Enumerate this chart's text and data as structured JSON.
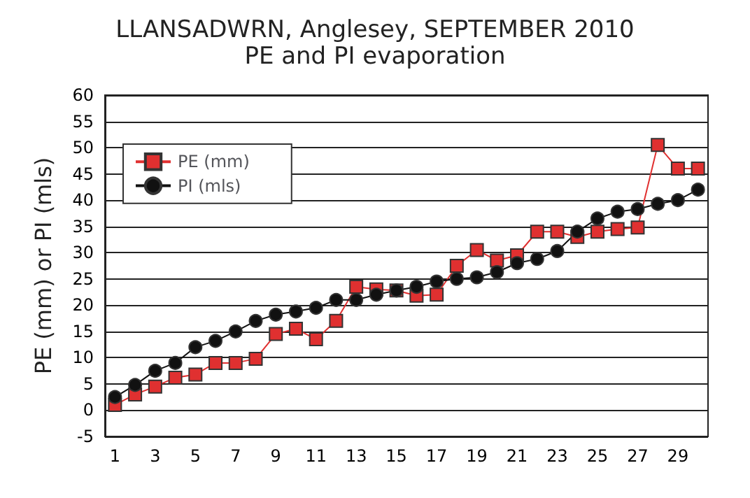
{
  "chart_data": {
    "type": "line",
    "title": "LLANSADWRN, Anglesey, SEPTEMBER 2010",
    "subtitle": "PE and PI evaporation",
    "ylabel": "PE (mm) or PI (mls)",
    "x": [
      1,
      2,
      3,
      4,
      5,
      6,
      7,
      8,
      9,
      10,
      11,
      12,
      13,
      14,
      15,
      16,
      17,
      18,
      19,
      20,
      21,
      22,
      23,
      24,
      25,
      26,
      27,
      28,
      29,
      30
    ],
    "xlim": [
      0.5,
      30.5
    ],
    "xticks": [
      1,
      3,
      5,
      7,
      9,
      11,
      13,
      15,
      17,
      19,
      21,
      23,
      25,
      27,
      29
    ],
    "series": [
      {
        "name": "PE (mm)",
        "color": "#e03030",
        "marker": "square",
        "values": [
          1,
          3,
          4.5,
          6.2,
          6.8,
          9,
          9,
          9.8,
          14.5,
          15.5,
          13.5,
          17,
          23.5,
          23,
          22.8,
          21.8,
          22,
          27.5,
          30.5,
          28.5,
          29.5,
          34,
          34,
          33,
          34,
          34.5,
          34.8,
          50.5,
          46,
          46
        ]
      },
      {
        "name": "PI (mls)",
        "color": "#111111",
        "marker": "circle",
        "values": [
          2.5,
          4.8,
          7.5,
          9,
          12,
          13.2,
          15,
          17,
          18.2,
          18.8,
          19.5,
          21,
          21,
          22,
          22.8,
          23.5,
          24.5,
          25,
          25.3,
          26.3,
          28,
          28.8,
          30.3,
          34,
          36.5,
          37.8,
          38.3,
          39.3,
          40,
          42
        ]
      }
    ],
    "ylim": [
      -5,
      60
    ],
    "yticks": [
      -5,
      0,
      5,
      10,
      15,
      20,
      25,
      30,
      35,
      40,
      45,
      50,
      55,
      60
    ],
    "grid": "y",
    "legend": "top left"
  }
}
